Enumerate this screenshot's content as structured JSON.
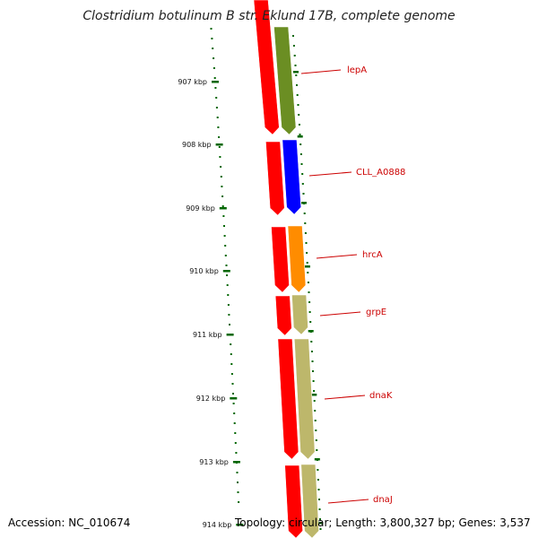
{
  "title": "Clostridium botulinum B str. Eklund 17B, complete genome",
  "footer": {
    "accession": "Accession: NC_010674",
    "summary": "Topology: circular; Length: 3,800,327 bp; Genes: 3,537"
  },
  "colors": {
    "cds": "#ff0000",
    "backbone": "#888888",
    "ticks": "#006600",
    "gene_label": "#cc0000"
  },
  "ticks": [
    {
      "label": "907 kbp"
    },
    {
      "label": "908 kbp"
    },
    {
      "label": "909 kbp"
    },
    {
      "label": "910 kbp"
    },
    {
      "label": "911 kbp"
    },
    {
      "label": "912 kbp"
    },
    {
      "label": "913 kbp"
    },
    {
      "label": "914 kbp"
    }
  ],
  "genes": [
    {
      "name": "lepA",
      "cog_color": "#6b8e23"
    },
    {
      "name": "CLL_A0888",
      "cog_color": "#0000ff"
    },
    {
      "name": "hrcA",
      "cog_color": "#ff8c00"
    },
    {
      "name": "grpE",
      "cog_color": "#bdb76b"
    },
    {
      "name": "dnaK",
      "cog_color": "#bdb76b"
    },
    {
      "name": "dnaJ",
      "cog_color": "#bdb76b"
    }
  ]
}
